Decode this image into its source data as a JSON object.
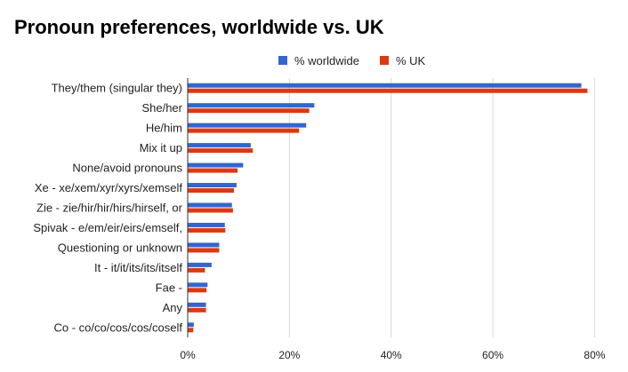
{
  "chart_data": {
    "type": "bar",
    "orientation": "horizontal",
    "title": "Pronoun preferences, worldwide vs. UK",
    "xlabel": "",
    "ylabel": "",
    "xlim": [
      0,
      85
    ],
    "x_ticks": [
      "0%",
      "20%",
      "40%",
      "60%",
      "80%"
    ],
    "x_tick_values": [
      0,
      20,
      40,
      60,
      80
    ],
    "grid": true,
    "legend_position": "top",
    "categories": [
      "They/them (singular they)",
      "She/her",
      "He/him",
      "Mix it up",
      "None/avoid pronouns",
      "Xe - xe/xem/xyr/xyrs/xemself",
      "Zie - zie/hir/hir/hirs/hirself, or",
      "Spivak - e/em/eir/eirs/emself,",
      "Questioning or unknown",
      "It - it/it/its/its/itself",
      "Fae -",
      "Any",
      "Co - co/co/cos/cos/coself"
    ],
    "series": [
      {
        "name": "% worldwide",
        "color": "#3366cc",
        "values": [
          77.4,
          24.9,
          23.3,
          12.4,
          10.9,
          9.6,
          8.7,
          7.3,
          6.2,
          4.7,
          3.9,
          3.6,
          1.2
        ]
      },
      {
        "name": "% UK",
        "color": "#dc3912",
        "values": [
          78.6,
          23.9,
          21.9,
          12.8,
          9.8,
          9.1,
          8.9,
          7.4,
          6.2,
          3.4,
          3.7,
          3.6,
          1.1
        ]
      }
    ]
  }
}
